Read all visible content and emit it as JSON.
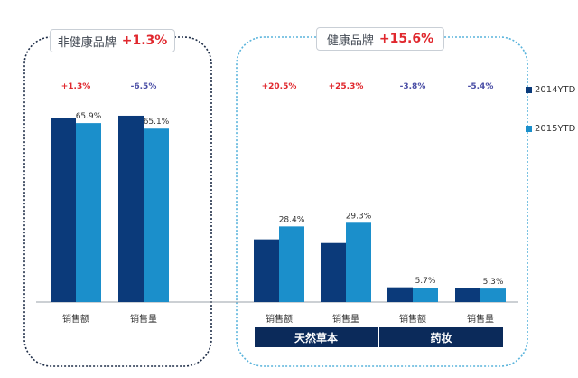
{
  "chart_data": {
    "type": "bar",
    "groups": [
      {
        "title": "非健康品牌",
        "change": "+1.3%",
        "border_color": "#1f2e48"
      },
      {
        "title": "健康品牌",
        "change": "+15.6%",
        "border_color": "#5ab4dc"
      }
    ],
    "subgroups": [
      {
        "label": "天然草本",
        "color": "#0b2a5a"
      },
      {
        "label": "药妆",
        "color": "#0b2a5a"
      }
    ],
    "series": [
      {
        "name": "2014YTD",
        "color": "#0b3a7a"
      },
      {
        "name": "2015YTD",
        "color": "#1b8fcb"
      }
    ],
    "bar_groups": [
      {
        "category": "销售额",
        "values": [
          100,
          97
        ],
        "label": "65.9%",
        "change": "+1.3%",
        "change_color": "#e0282e"
      },
      {
        "category": "销售量",
        "values": [
          101,
          94
        ],
        "label": "65.1%",
        "change": "-6.5%",
        "change_color": "#4b4fa6"
      },
      {
        "category": "销售额",
        "values": [
          34,
          41
        ],
        "label": "28.4%",
        "change": "+20.5%",
        "change_color": "#e0282e"
      },
      {
        "category": "销售量",
        "values": [
          32,
          43
        ],
        "label": "29.3%",
        "change": "+25.3%",
        "change_color": "#e0282e"
      },
      {
        "category": "销售额",
        "values": [
          8,
          7.8
        ],
        "label": "5.7%",
        "change": "-3.8%",
        "change_color": "#4b4fa6"
      },
      {
        "category": "销售量",
        "values": [
          7.5,
          7.3
        ],
        "label": "5.3%",
        "change": "-5.4%",
        "change_color": "#4b4fa6"
      }
    ]
  }
}
